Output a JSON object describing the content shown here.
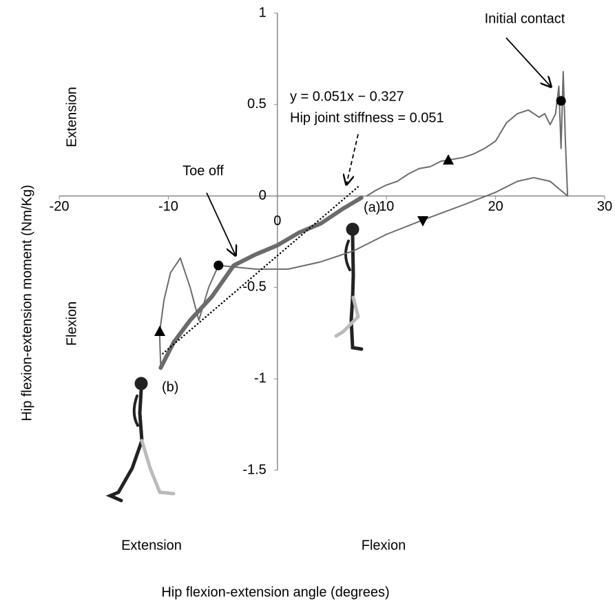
{
  "chart_data": {
    "type": "line",
    "xlabel": "Hip flexion-extension angle (degrees)",
    "ylabel": "Hip flexion-extension moment (Nm/Kg)",
    "xlim": [
      -20,
      30
    ],
    "ylim": [
      -1.5,
      1
    ],
    "xticks": [
      -20,
      -10,
      0,
      10,
      20,
      30
    ],
    "yticks": [
      1,
      0.5,
      0,
      -0.5,
      -1,
      -1.5
    ],
    "grid": false,
    "y_direction_labels": [
      "Extension",
      "Flexion"
    ],
    "x_direction_labels": [
      "Extension",
      "Flexion"
    ],
    "annotations": [
      "Initial contact",
      "Toe off",
      "y = 0.051x − 0.327",
      "Hip joint stiffness = 0.051",
      "(a)",
      "(b)"
    ],
    "series": [
      {
        "color": "#6b6b6b",
        "width": 2,
        "style": "solid",
        "x": [
          8.2,
          9,
          10,
          11,
          12,
          13,
          14,
          15,
          16,
          17,
          18,
          19,
          20,
          21,
          22,
          23,
          24,
          24.5,
          25,
          25.5,
          25.8,
          26.0,
          26.2,
          26.4,
          26.6,
          25,
          23.5,
          22,
          20,
          17,
          13.4,
          10,
          7,
          4,
          1,
          -2,
          -5.4,
          -6.3,
          -7.2,
          -8,
          -8.9,
          -9.8,
          -10.4,
          -10.8,
          -10.7
        ],
        "values": [
          0.0,
          0.03,
          0.06,
          0.08,
          0.12,
          0.15,
          0.16,
          0.19,
          0.2,
          0.21,
          0.23,
          0.26,
          0.3,
          0.4,
          0.45,
          0.47,
          0.43,
          0.45,
          0.39,
          0.45,
          0.6,
          0.26,
          0.68,
          0.3,
          0,
          0.08,
          0.1,
          0.08,
          0.02,
          -0.05,
          -0.13,
          -0.21,
          -0.3,
          -0.36,
          -0.4,
          -0.4,
          -0.38,
          -0.5,
          -0.68,
          -0.5,
          -0.34,
          -0.42,
          -0.57,
          -0.75,
          -0.93
        ]
      },
      {
        "color": "#6b6b6b",
        "width": 6,
        "style": "solid",
        "x": [
          -10.7,
          -9.5,
          -8,
          -6,
          -4,
          -2,
          0,
          2,
          4,
          6,
          7.7
        ],
        "values": [
          -0.94,
          -0.8,
          -0.68,
          -0.55,
          -0.38,
          -0.32,
          -0.27,
          -0.2,
          -0.15,
          -0.07,
          -0.01
        ]
      },
      {
        "color": "#000000",
        "width": 2.5,
        "style": "dotted",
        "x": [
          -10.5,
          7.4
        ],
        "values": [
          -0.862,
          0.05
        ]
      }
    ],
    "markers": {
      "color": "#000000",
      "x": [
        26,
        -5.4
      ],
      "values": [
        0.52,
        -0.38
      ]
    }
  }
}
